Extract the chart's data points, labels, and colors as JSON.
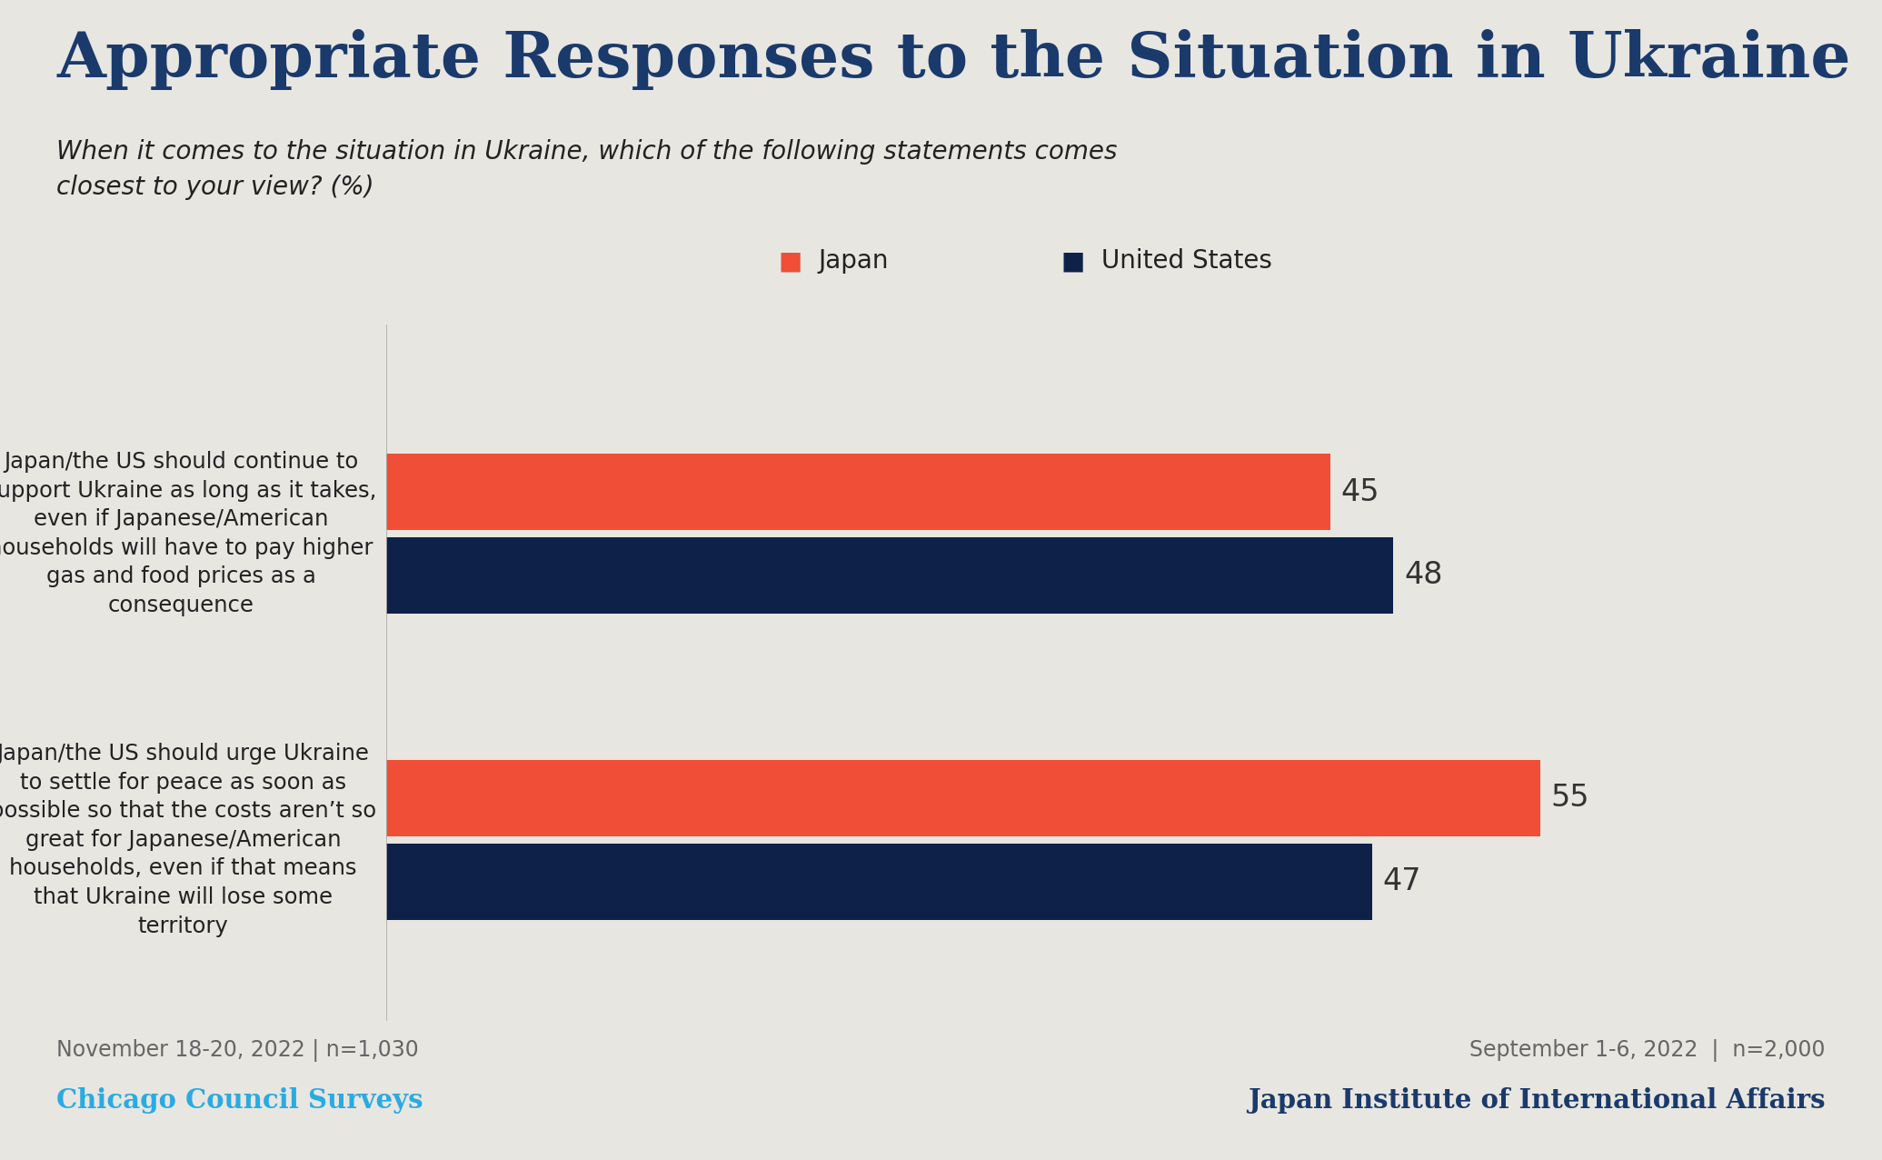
{
  "title": "Appropriate Responses to the Situation in Ukraine",
  "subtitle": "When it comes to the situation in Ukraine, which of the following statements comes\nclosest to your view? (%)",
  "background_color": "#e8e6e1",
  "title_color": "#1a3a6b",
  "subtitle_color": "#222222",
  "bar_color_japan": "#f04e37",
  "bar_color_us": "#0d2149",
  "legend_japan": "Japan",
  "legend_us": "United States",
  "categories": [
    "Japan/the US should continue to\nsupport Ukraine as long as it takes,\neven if Japanese/American\nhouseholds will have to pay higher\ngas and food prices as a\nconsequence",
    "Japan/the US should urge Ukraine\nto settle for peace as soon as\npossible so that the costs aren’t so\ngreat for Japanese/American\nhouseholds, even if that means\nthat Ukraine will lose some\nterritory"
  ],
  "values_japan": [
    45,
    55
  ],
  "values_us": [
    48,
    47
  ],
  "value_label_color": "#333333",
  "footer_left_date": "November 18-20, 2022 | n=1,030",
  "footer_left_org": "Chicago Council Surveys",
  "footer_left_org_color": "#29abe2",
  "footer_right_date": "September 1-6, 2022  |  n=2,000",
  "footer_right_org": "Japan Institute of International Affairs",
  "footer_right_org_color": "#1a3a6b",
  "footer_date_color": "#666666",
  "xmax": 65,
  "bar_height": 0.55,
  "divider_line_color": "#aaaaaa"
}
